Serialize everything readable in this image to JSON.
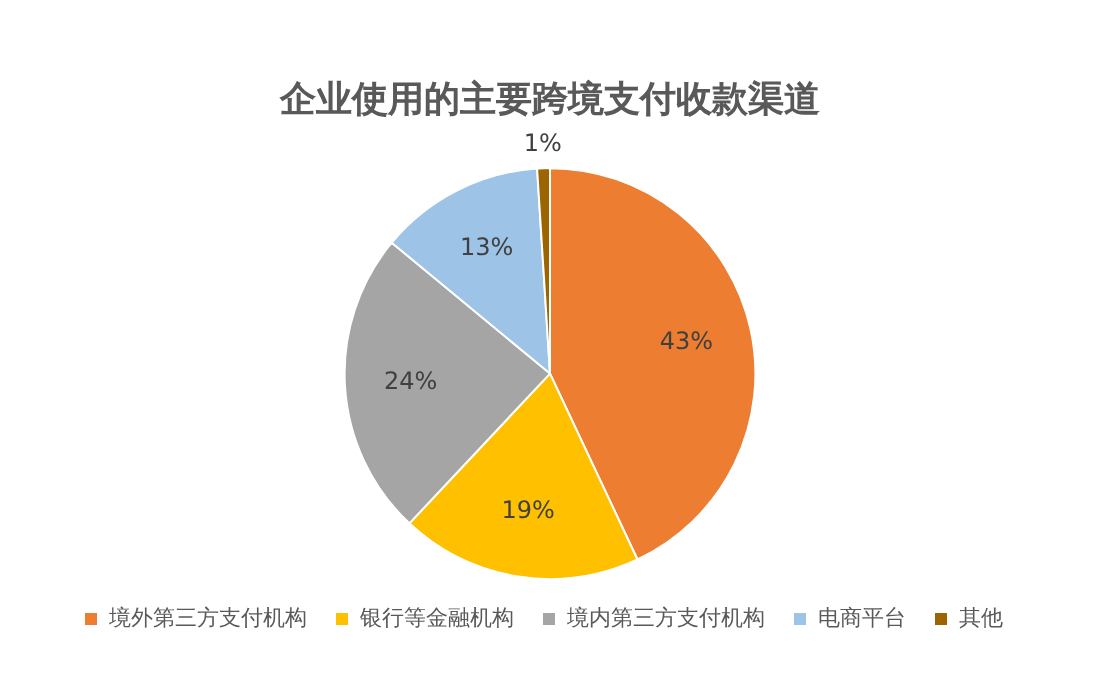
{
  "chart_data": {
    "type": "pie",
    "title": "企业使用的主要跨境支付收款渠道",
    "categories": [
      "境外第三方支付机构",
      "银行等金融机构",
      "境内第三方支付机构",
      "电商平台",
      "其他"
    ],
    "values": [
      43,
      19,
      24,
      13,
      1
    ],
    "colors": [
      "#ed7d31",
      "#ffc000",
      "#a5a5a5",
      "#9dc3e6",
      "#9c6500"
    ],
    "value_labels": [
      "43%",
      "19%",
      "24%",
      "13%",
      "1%"
    ],
    "legend": "bottom"
  }
}
